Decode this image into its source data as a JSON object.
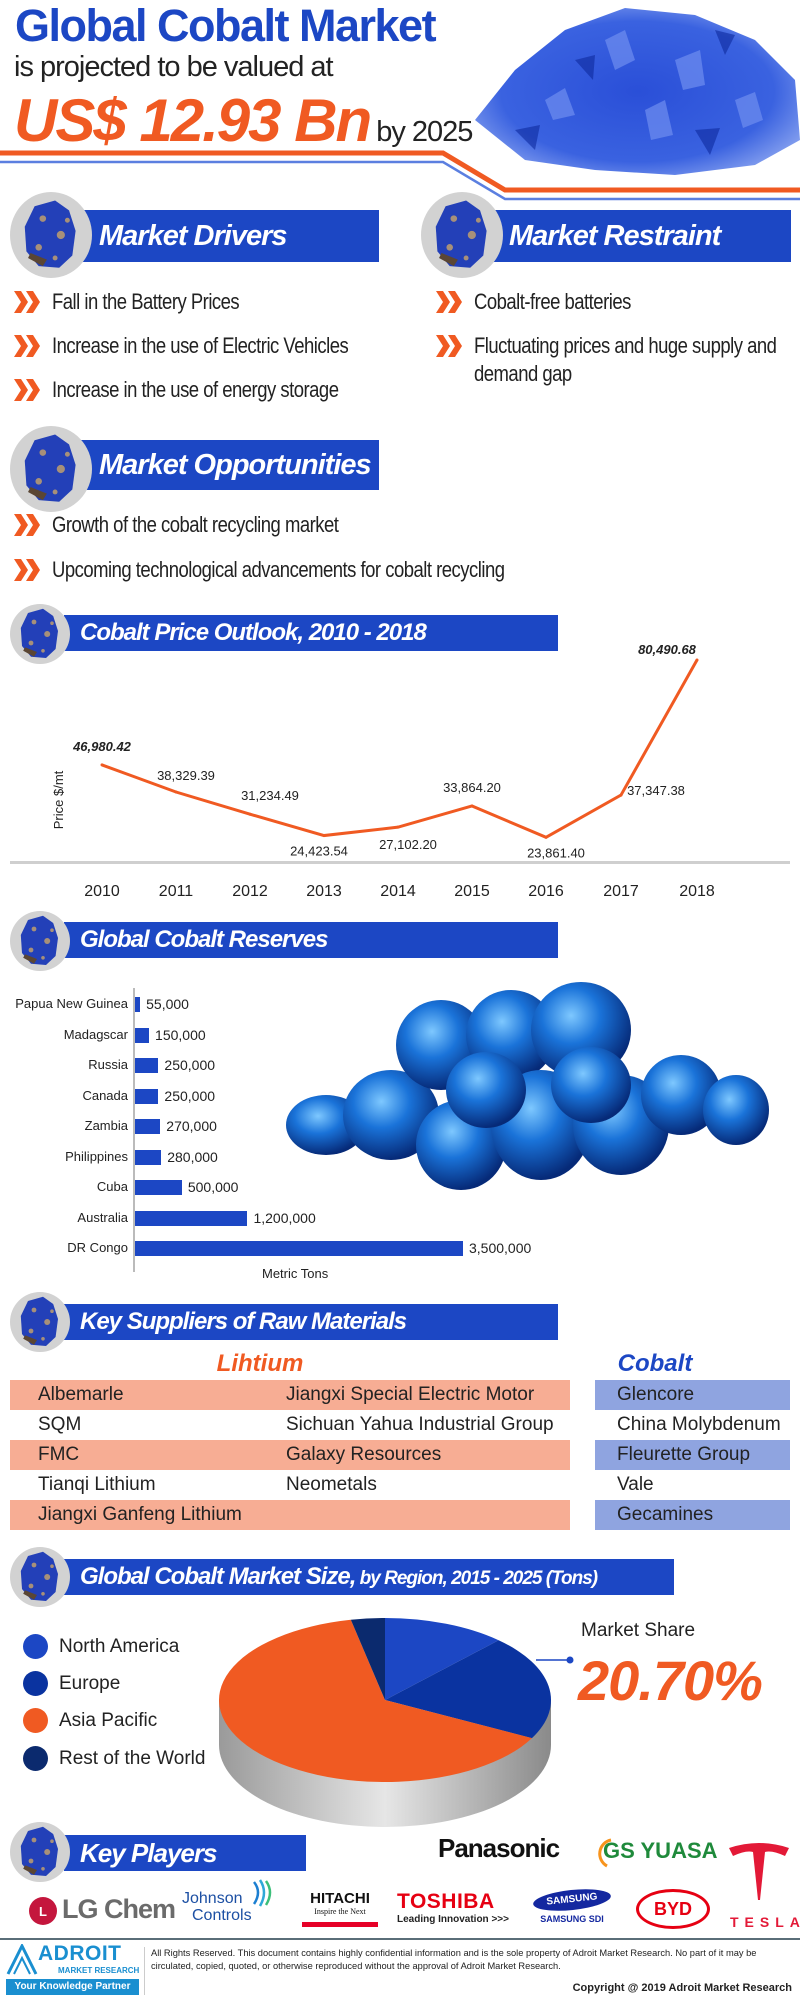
{
  "hero": {
    "title": "Global Cobalt Market",
    "subtitle": "is projected to be valued at",
    "value": "US$ 12.93 Bn",
    "by_year": "by 2025"
  },
  "colors": {
    "brand_blue": "#1c47c4",
    "accent_orange": "#f05a22",
    "lithium_row": "#f7ad94",
    "cobalt_row": "#8fa4e0"
  },
  "drivers": {
    "title": "Market Drivers",
    "items": [
      "Fall in the Battery Prices",
      "Increase in the use of Electric Vehicles",
      "Increase in the use of energy storage"
    ]
  },
  "restraint": {
    "title": "Market Restraint",
    "items": [
      "Cobalt-free batteries",
      "Fluctuating prices and huge supply and demand gap"
    ]
  },
  "opportunities": {
    "title": "Market Opportunities",
    "items": [
      "Growth of the cobalt recycling market",
      "Upcoming technological advancements for cobalt recycling"
    ]
  },
  "price_section": {
    "title": "Cobalt Price Outlook, 2010 - 2018"
  },
  "reserves_section": {
    "title": "Global Cobalt Reserves"
  },
  "chart_data": [
    {
      "type": "line",
      "title": "Cobalt Price Outlook, 2010 - 2018",
      "ylabel": "Price $/mt",
      "xlabel": "",
      "x": [
        "2010",
        "2011",
        "2012",
        "2013",
        "2014",
        "2015",
        "2016",
        "2017",
        "2018"
      ],
      "values": [
        46980.42,
        38329.39,
        31234.49,
        24423.54,
        27102.2,
        33864.2,
        23861.4,
        37347.38,
        80490.68
      ],
      "labels": [
        "46,980.42",
        "38,329.39",
        "31,234.49",
        "24,423.54",
        "27,102.20",
        "33,864.20",
        "23,861.40",
        "37,347.38",
        "80,490.68"
      ],
      "line_color": "#f05a22",
      "grid": false
    },
    {
      "type": "bar",
      "orientation": "horizontal",
      "title": "Global Cobalt Reserves",
      "xlabel": "Metric Tons",
      "categories": [
        "Papua New Guinea",
        "Madagscar",
        "Russia",
        "Canada",
        "Zambia",
        "Philippines",
        "Cuba",
        "Australia",
        "DR Congo"
      ],
      "values": [
        55000,
        150000,
        250000,
        250000,
        270000,
        280000,
        500000,
        1200000,
        3500000
      ],
      "labels": [
        "55,000",
        "150,000",
        "250,000",
        "250,000",
        "270,000",
        "280,000",
        "500,000",
        "1,200,000",
        "3,500,000"
      ],
      "bar_color": "#1c47c4",
      "grid": false
    },
    {
      "type": "pie",
      "title": "Global Cobalt Market Size, by Region, 2015 - 2025 (Tons)",
      "categories": [
        "North America",
        "Europe",
        "Asia Pacific",
        "Rest of the World"
      ],
      "values": [
        12,
        20.7,
        64,
        3.3
      ],
      "colors": [
        "#1c47c4",
        "#0a33a0",
        "#f05a22",
        "#0b2a6e"
      ],
      "legend": "left",
      "annotation": {
        "label": "Market Share",
        "value": "20.70%"
      }
    }
  ],
  "suppliers": {
    "title": "Key Suppliers of Raw Materials",
    "lithium_label": "Lihtium",
    "cobalt_label": "Cobalt",
    "lithium_rows": [
      [
        "Albemarle",
        "Jiangxi Special Electric Motor"
      ],
      [
        "SQM",
        "Sichuan Yahua Industrial Group"
      ],
      [
        "FMC",
        "Galaxy Resources"
      ],
      [
        "Tianqi Lithium",
        "Neometals"
      ],
      [
        "Jiangxi Ganfeng Lithium",
        ""
      ]
    ],
    "cobalt_rows": [
      "Glencore",
      "China Molybdenum",
      "Fleurette Group",
      "Vale",
      "Gecamines"
    ]
  },
  "market_size": {
    "title_main": "Global Cobalt Market Size,",
    "title_rest": " by Region, 2015 - 2025 (Tons)",
    "share_label": "Market Share",
    "share_value": "20.70%"
  },
  "key_players": {
    "title": "Key Players",
    "logos": {
      "panasonic": "Panasonic",
      "gsyuasa": "GS YUASA",
      "tesla": "TESLA",
      "lgchem": "LG Chem",
      "johnson1": "Johnson",
      "johnson2": "Controls",
      "hitachi": "HITACHI",
      "hitachi_tag": "Inspire the Next",
      "toshiba": "TOSHIBA",
      "toshiba_tag": "Leading Innovation >>>",
      "samsung": "SAMSUNG",
      "samsung_sdi": "SAMSUNG SDI",
      "byd": "BYD"
    }
  },
  "footer": {
    "brand": "ADROIT",
    "brand_sub": "MARKET RESEARCH",
    "tagline": "Your Knowledge Partner",
    "legal": "All Rights Reserved. This document contains highly confidential information and is the sole property of Adroit Market Research. No part of it may be circulated, copied, quoted, or otherwise reproduced without the approval of Adroit Market Research.",
    "copyright": "Copyright @ 2019 Adroit Market Research"
  }
}
